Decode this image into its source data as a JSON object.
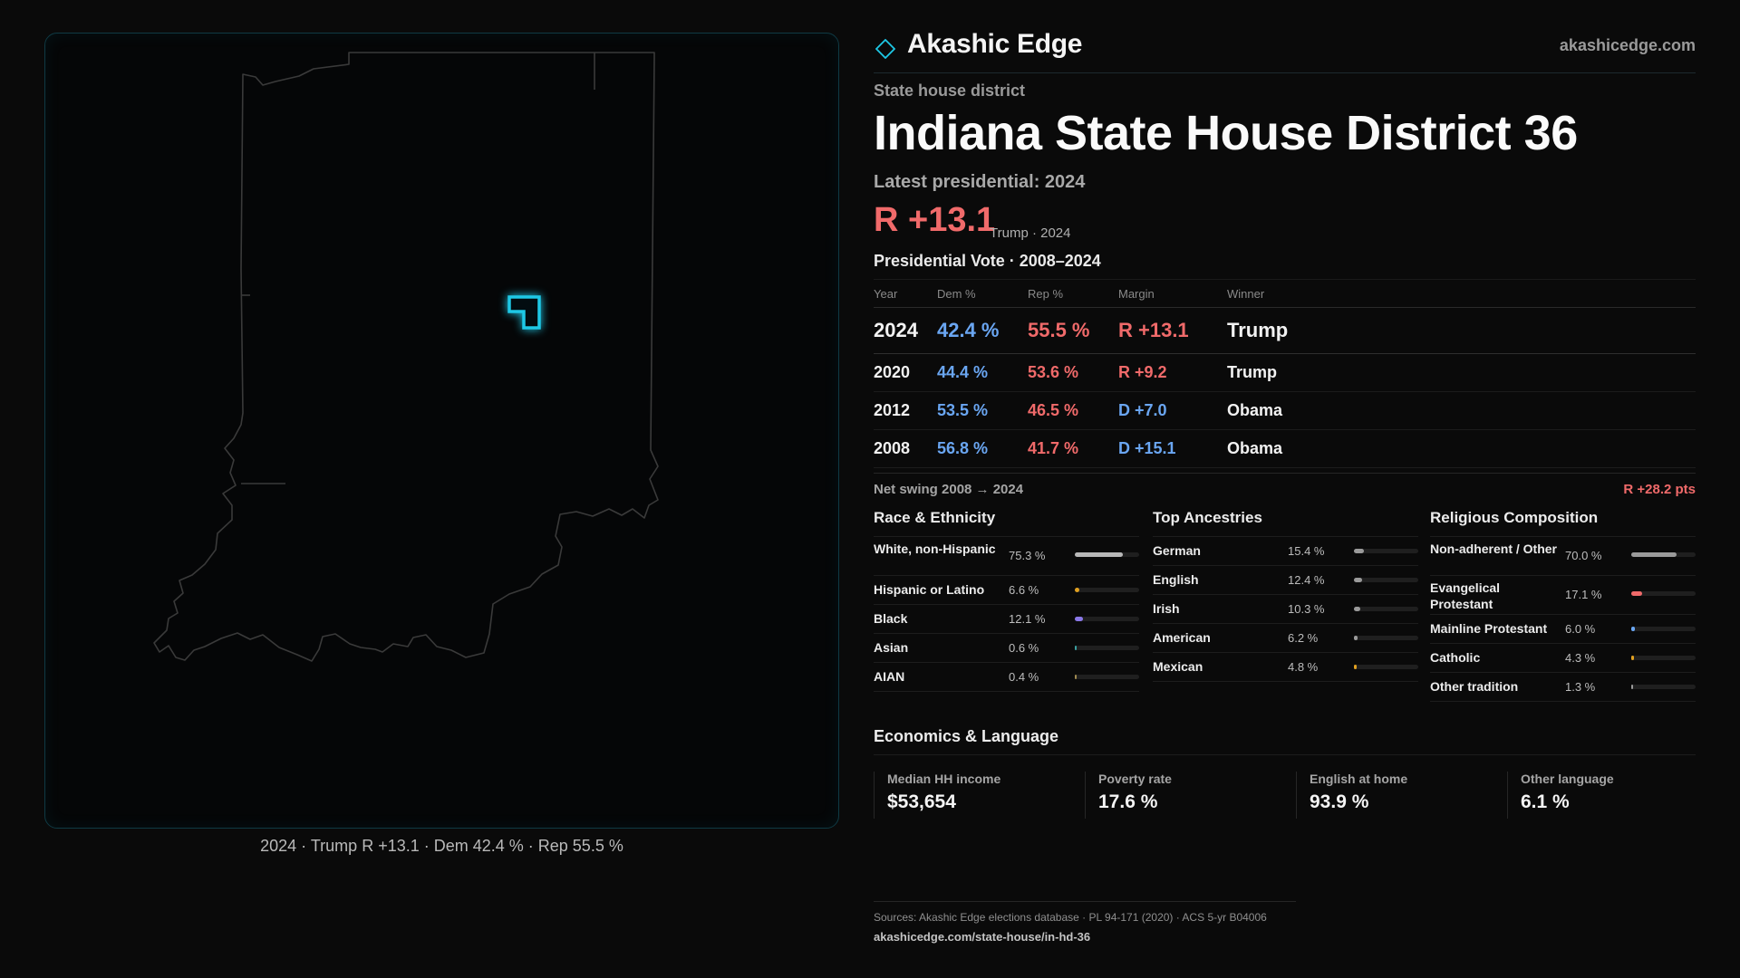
{
  "brand": {
    "name": "Akashic Edge",
    "url": "akashicedge.com"
  },
  "header": {
    "kicker": "State house district",
    "title": "Indiana State House District 36",
    "latest_label": "Latest presidential: 2024",
    "margin": "R +13.1",
    "margin_sub": "Trump · 2024"
  },
  "map": {
    "caption": "2024 · Trump R +13.1 · Dem 42.4 % · Rep 55.5 %",
    "district_color": "#1ec8e6",
    "outline_color": "#3a3a3a"
  },
  "presidential": {
    "title": "Presidential Vote · 2008–2024",
    "columns": [
      "Year",
      "Dem %",
      "Rep %",
      "Margin",
      "Winner"
    ],
    "rows": [
      {
        "year": "2024",
        "dem": "42.4 %",
        "rep": "55.5 %",
        "margin": "R +13.1",
        "party": "R",
        "winner": "Trump"
      },
      {
        "year": "2020",
        "dem": "44.4 %",
        "rep": "53.6 %",
        "margin": "R +9.2",
        "party": "R",
        "winner": "Trump"
      },
      {
        "year": "2012",
        "dem": "53.5 %",
        "rep": "46.5 %",
        "margin": "D +7.0",
        "party": "D",
        "winner": "Obama"
      },
      {
        "year": "2008",
        "dem": "56.8 %",
        "rep": "41.7 %",
        "margin": "D +15.1",
        "party": "D",
        "winner": "Obama"
      }
    ],
    "swing_label": "Net swing 2008 → 2024",
    "swing_value": "R +28.2 pts"
  },
  "race": {
    "title": "Race & Ethnicity",
    "items": [
      {
        "label": "White, non-Hispanic",
        "value": "75.3 %",
        "fraction": 0.753,
        "color": "#b8b8b8"
      },
      {
        "label": "Hispanic or Latino",
        "value": "6.6 %",
        "fraction": 0.066,
        "color": "#e0a020"
      },
      {
        "label": "Black",
        "value": "12.1 %",
        "fraction": 0.121,
        "color": "#8a78e8"
      },
      {
        "label": "Asian",
        "value": "0.6 %",
        "fraction": 0.006,
        "color": "#3aa0a0"
      },
      {
        "label": "AIAN",
        "value": "0.4 %",
        "fraction": 0.004,
        "color": "#a08a50"
      }
    ]
  },
  "ancestry": {
    "title": "Top Ancestries",
    "items": [
      {
        "label": "German",
        "value": "15.4 %",
        "fraction": 0.154,
        "color": "#9a9a9a"
      },
      {
        "label": "English",
        "value": "12.4 %",
        "fraction": 0.124,
        "color": "#9a9a9a"
      },
      {
        "label": "Irish",
        "value": "10.3 %",
        "fraction": 0.103,
        "color": "#9a9a9a"
      },
      {
        "label": "American",
        "value": "6.2 %",
        "fraction": 0.062,
        "color": "#9a9a9a"
      },
      {
        "label": "Mexican",
        "value": "4.8 %",
        "fraction": 0.048,
        "color": "#e0a020"
      }
    ]
  },
  "religion": {
    "title": "Religious Composition",
    "items": [
      {
        "label": "Non-adherent / Other",
        "value": "70.0 %",
        "fraction": 0.7,
        "color": "#9a9a9a"
      },
      {
        "label": "Evangelical Protestant",
        "value": "17.1 %",
        "fraction": 0.171,
        "color": "#f06a6a"
      },
      {
        "label": "Mainline Protestant",
        "value": "6.0 %",
        "fraction": 0.06,
        "color": "#6aa6f2"
      },
      {
        "label": "Catholic",
        "value": "4.3 %",
        "fraction": 0.043,
        "color": "#e0a020"
      },
      {
        "label": "Other tradition",
        "value": "1.3 %",
        "fraction": 0.013,
        "color": "#9a9a9a"
      }
    ]
  },
  "economics": {
    "title": "Economics & Language",
    "cards": [
      {
        "label": "Median HH income",
        "value": "$53,654"
      },
      {
        "label": "Poverty rate",
        "value": "17.6 %"
      },
      {
        "label": "English at home",
        "value": "93.9 %"
      },
      {
        "label": "Other language",
        "value": "6.1 %"
      }
    ]
  },
  "sources": {
    "line1": "Sources: Akashic Edge elections database · PL 94-171 (2020) · ACS 5-yr B04006",
    "line2": "akashicedge.com/state-house/in-hd-36"
  },
  "colors": {
    "rep": "#f06a6a",
    "dem": "#6aa6f2",
    "accent": "#1ec8e6"
  }
}
